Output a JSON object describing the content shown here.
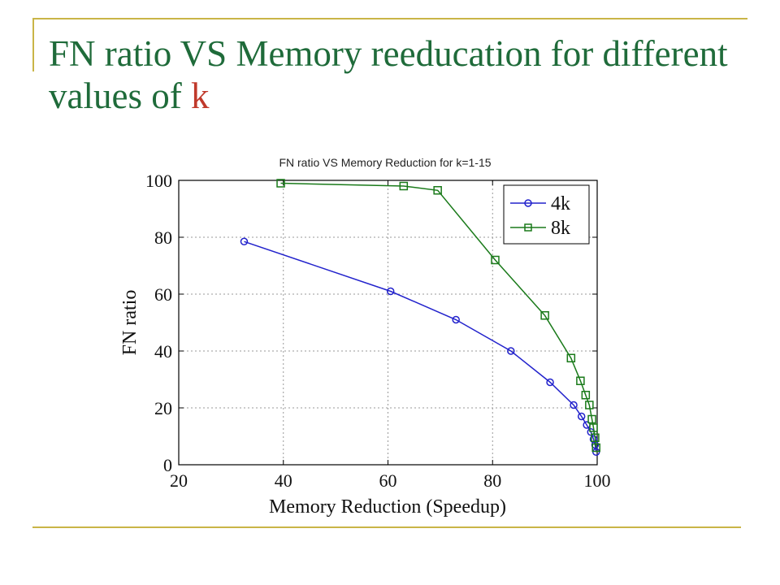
{
  "slide": {
    "title_main": "FN ratio VS Memory reeducation for different values of ",
    "title_accent": "k"
  },
  "colors": {
    "title": "#1f6b3a",
    "accent": "#c0392b",
    "rule": "#c9b547",
    "series_4k": "#2222cc",
    "series_8k": "#1a7a1a"
  },
  "chart_data": {
    "type": "line",
    "title": "FN ratio VS Memory Reduction for k=1-15",
    "xlabel": "Memory Reduction (Speedup)",
    "ylabel": "FN ratio",
    "xlim": [
      20,
      100
    ],
    "ylim": [
      0,
      100
    ],
    "xticks": [
      20,
      40,
      60,
      80,
      100
    ],
    "yticks": [
      0,
      20,
      40,
      60,
      80,
      100
    ],
    "grid": true,
    "legend_position": "top-right",
    "series": [
      {
        "name": "4k",
        "marker": "circle",
        "color": "#2222cc",
        "x": [
          32.5,
          60.5,
          73,
          83.5,
          91,
          95.5,
          97,
          98,
          98.8,
          99.3,
          99.6,
          99.8
        ],
        "y": [
          78.5,
          61,
          51,
          40,
          29,
          21,
          17,
          14,
          11.5,
          9,
          7,
          4.5
        ]
      },
      {
        "name": "8k",
        "marker": "square",
        "color": "#1a7a1a",
        "x": [
          39.5,
          63,
          69.5,
          80.5,
          90,
          95,
          96.8,
          97.8,
          98.5,
          99,
          99.3,
          99.6,
          99.8
        ],
        "y": [
          99,
          98,
          96.5,
          72,
          52.5,
          37.5,
          29.5,
          24.5,
          21,
          16,
          13,
          9.5,
          6
        ]
      }
    ]
  }
}
